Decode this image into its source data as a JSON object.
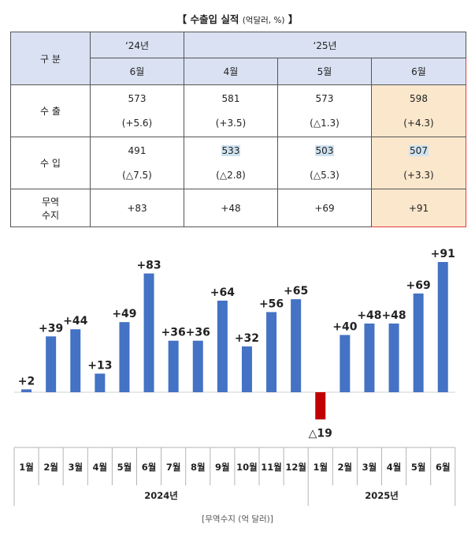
{
  "table": {
    "title": "【 수출입 실적",
    "title_unit": "(억달러, %)",
    "title_close": "】",
    "header_gubun": "구 분",
    "year_24": "‘24년",
    "year_25": "‘25년",
    "months": [
      "6월",
      "4월",
      "5월",
      "6월"
    ],
    "rows": [
      {
        "label": "수 출",
        "values": [
          "573",
          "581",
          "573",
          "598"
        ],
        "changes": [
          "(+5.6)",
          "(+3.5)",
          "(△1.3)",
          "(+4.3)"
        ]
      },
      {
        "label": "수 입",
        "values": [
          "491",
          "533",
          "503",
          "507"
        ],
        "changes": [
          "(△7.5)",
          "(△2.8)",
          "(△5.3)",
          "(+3.3)"
        ]
      },
      {
        "label_line1": "무역",
        "label_line2": "수지",
        "values": [
          "+83",
          "+48",
          "+69",
          "+91"
        ]
      }
    ]
  },
  "chart_data": {
    "type": "bar",
    "title": "",
    "categories": [
      "1월",
      "2월",
      "3월",
      "4월",
      "5월",
      "6월",
      "7월",
      "8월",
      "9월",
      "10월",
      "11월",
      "12월",
      "1월",
      "2월",
      "3월",
      "4월",
      "5월",
      "6월"
    ],
    "groups": [
      {
        "label": "2024년",
        "count": 12
      },
      {
        "label": "2025년",
        "count": 6
      }
    ],
    "values": [
      2,
      39,
      44,
      13,
      49,
      83,
      36,
      36,
      64,
      32,
      56,
      65,
      -19,
      40,
      48,
      48,
      69,
      91
    ],
    "labels": [
      "+2",
      "+39",
      "+44",
      "+13",
      "+49",
      "+83",
      "+36",
      "+36",
      "+64",
      "+32",
      "+56",
      "+65",
      "△19",
      "+40",
      "+48",
      "+48",
      "+69",
      "+91"
    ],
    "colors": {
      "positive": "#4472c4",
      "negative": "#c00000"
    },
    "xlabel": "",
    "ylabel": "",
    "ylim": [
      -19,
      91
    ],
    "caption": "[무역수지 (억 달러)]"
  }
}
